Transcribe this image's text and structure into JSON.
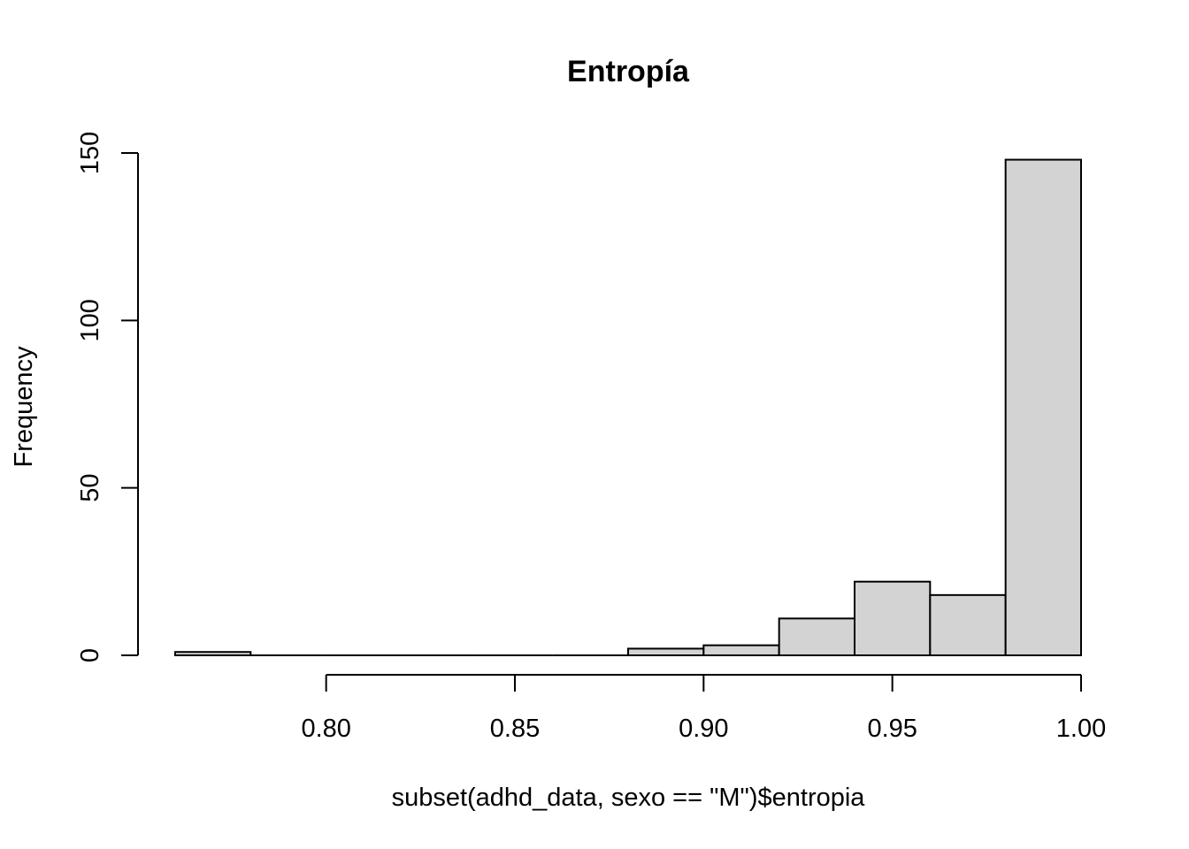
{
  "chart_data": {
    "type": "bar",
    "title": "Entropía",
    "xlabel": "subset(adhd_data, sexo == \"M\")$entropia",
    "ylabel": "Frequency",
    "bins": [
      {
        "x0": 0.76,
        "x1": 0.78,
        "count": 1
      },
      {
        "x0": 0.78,
        "x1": 0.8,
        "count": 0
      },
      {
        "x0": 0.8,
        "x1": 0.82,
        "count": 0
      },
      {
        "x0": 0.82,
        "x1": 0.84,
        "count": 0
      },
      {
        "x0": 0.84,
        "x1": 0.86,
        "count": 0
      },
      {
        "x0": 0.86,
        "x1": 0.88,
        "count": 0
      },
      {
        "x0": 0.88,
        "x1": 0.9,
        "count": 2
      },
      {
        "x0": 0.9,
        "x1": 0.92,
        "count": 3
      },
      {
        "x0": 0.92,
        "x1": 0.94,
        "count": 11
      },
      {
        "x0": 0.94,
        "x1": 0.96,
        "count": 22
      },
      {
        "x0": 0.96,
        "x1": 0.98,
        "count": 18
      },
      {
        "x0": 0.98,
        "x1": 1.0,
        "count": 148
      }
    ],
    "xlim": [
      0.76,
      1.0
    ],
    "ylim": [
      0,
      150
    ],
    "x_ticks": [
      0.8,
      0.85,
      0.9,
      0.95,
      1.0
    ],
    "x_tick_labels": [
      "0.80",
      "0.85",
      "0.90",
      "0.95",
      "1.00"
    ],
    "y_ticks": [
      0,
      50,
      100,
      150
    ],
    "y_tick_labels": [
      "0",
      "50",
      "100",
      "150"
    ],
    "grid": false,
    "colors": {
      "bar_fill": "#d3d3d3",
      "bar_stroke": "#000000"
    }
  }
}
